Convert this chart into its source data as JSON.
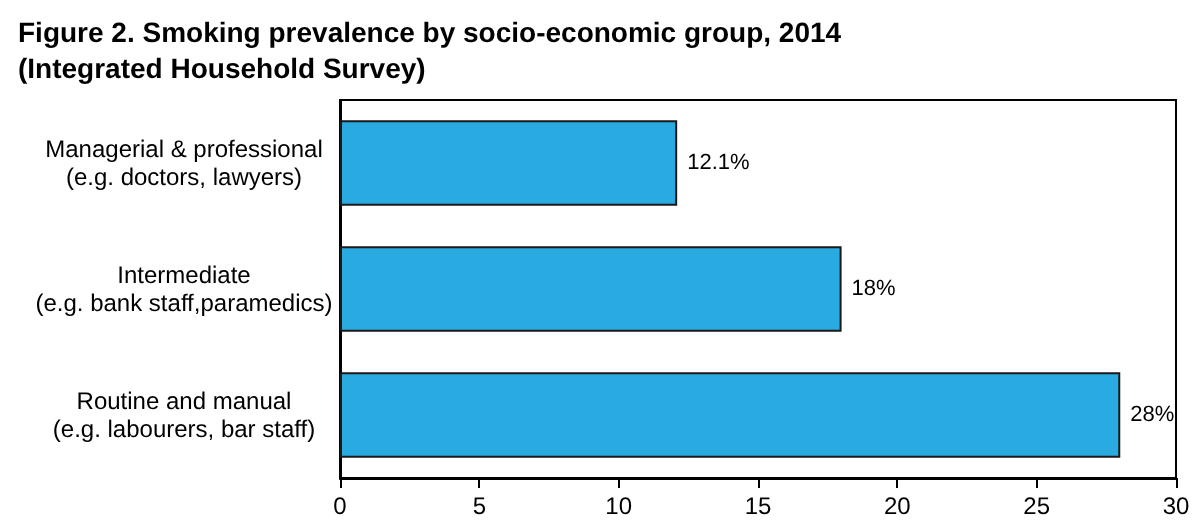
{
  "chart_data": {
    "type": "bar",
    "orientation": "horizontal",
    "title": "Figure 2. Smoking prevalence by socio-economic group, 2014\n(Integrated Household Survey)",
    "categories": [
      "Managerial & professional\n(e.g. doctors, lawyers)",
      "Intermediate\n(e.g. bank staff,paramedics)",
      "Routine and manual\n(e.g. labourers, bar staff)"
    ],
    "values": [
      12.1,
      18,
      28
    ],
    "value_labels": [
      "12.1%",
      "18%",
      "28%"
    ],
    "color": "#29abe2",
    "xlim": [
      0,
      30
    ],
    "xticks": [
      0,
      5,
      10,
      15,
      20,
      25,
      30
    ],
    "grid": false
  }
}
